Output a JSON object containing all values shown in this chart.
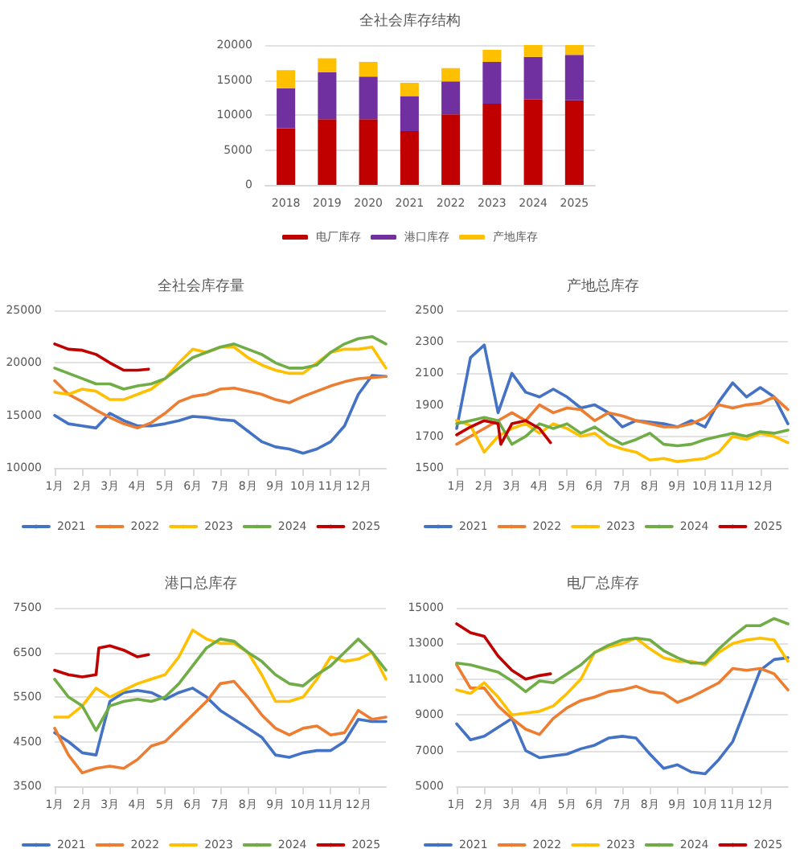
{
  "chart_data": [
    {
      "type": "bar",
      "title": "全社会库存结构",
      "stacked": true,
      "categories": [
        "2018",
        "2019",
        "2020",
        "2021",
        "2022",
        "2023",
        "2024",
        "2025"
      ],
      "ylim": [
        0,
        20000
      ],
      "yticks": [
        0,
        5000,
        10000,
        15000,
        20000
      ],
      "grid": "y",
      "legend": "bottom",
      "series": [
        {
          "name": "电厂库存",
          "color": "#c00000",
          "values": [
            8100,
            9400,
            9400,
            7700,
            10100,
            11600,
            12200,
            12100
          ]
        },
        {
          "name": "港口库存",
          "color": "#7030a0",
          "values": [
            5700,
            6700,
            6100,
            5000,
            4700,
            6000,
            6100,
            6500
          ]
        },
        {
          "name": "产地库存",
          "color": "#ffc000",
          "values": [
            2600,
            2000,
            2100,
            1900,
            1900,
            1700,
            1700,
            1400
          ]
        }
      ]
    },
    {
      "type": "line",
      "title": "全社会库存量",
      "x": [
        1,
        1.5,
        2,
        2.5,
        3,
        3.5,
        4,
        4.5,
        5,
        5.5,
        6,
        6.5,
        7,
        7.5,
        8,
        8.5,
        9,
        9.5,
        10,
        10.5,
        11,
        11.5,
        12,
        12.5,
        13
      ],
      "xlim": [
        1,
        13
      ],
      "xticks": [
        {
          "value": 1,
          "label": "1月"
        },
        {
          "value": 2,
          "label": "2月"
        },
        {
          "value": 3,
          "label": "3月"
        },
        {
          "value": 4,
          "label": "4月"
        },
        {
          "value": 5,
          "label": "5月"
        },
        {
          "value": 6,
          "label": "6月"
        },
        {
          "value": 7,
          "label": "7月"
        },
        {
          "value": 8,
          "label": "8月"
        },
        {
          "value": 9,
          "label": "9月"
        },
        {
          "value": 10,
          "label": "10月"
        },
        {
          "value": 11,
          "label": "11月"
        },
        {
          "value": 12,
          "label": "12月"
        }
      ],
      "ylim": [
        10000,
        25000
      ],
      "yticks": [
        10000,
        15000,
        20000,
        25000
      ],
      "grid": "y",
      "legend": "bottom",
      "marker": "none",
      "series": [
        {
          "name": "2021",
          "color": "#4472c4",
          "values": [
            15000,
            14200,
            14000,
            13800,
            15200,
            14500,
            14000,
            14000,
            14200,
            14500,
            14900,
            14800,
            14600,
            14500,
            13500,
            12500,
            12000,
            11800,
            11400,
            11800,
            12500,
            14000,
            17000,
            18800,
            18700
          ]
        },
        {
          "name": "2022",
          "color": "#ed7d31",
          "values": [
            18300,
            17000,
            16300,
            15500,
            14800,
            14200,
            13800,
            14300,
            15200,
            16300,
            16800,
            17000,
            17500,
            17600,
            17300,
            17000,
            16500,
            16200,
            16800,
            17300,
            17800,
            18200,
            18500,
            18600,
            18700
          ]
        },
        {
          "name": "2023",
          "color": "#ffc000",
          "values": [
            17200,
            17000,
            17500,
            17300,
            16500,
            16500,
            17000,
            17500,
            18500,
            20000,
            21300,
            21000,
            21500,
            21500,
            20500,
            19800,
            19300,
            19000,
            19000,
            20000,
            21000,
            21300,
            21300,
            21500,
            19500
          ]
        },
        {
          "name": "2024",
          "color": "#70ad47",
          "values": [
            19500,
            19000,
            18500,
            18000,
            18000,
            17500,
            17800,
            18000,
            18500,
            19500,
            20500,
            21000,
            21500,
            21800,
            21300,
            20800,
            20000,
            19500,
            19500,
            19800,
            21000,
            21800,
            22300,
            22500,
            21800
          ]
        },
        {
          "name": "2025",
          "color": "#c00000",
          "x": [
            1,
            1.5,
            2,
            2.5,
            3,
            3.5,
            4,
            4.4
          ],
          "values": [
            21800,
            21300,
            21200,
            20800,
            20000,
            19300,
            19300,
            19400
          ]
        }
      ]
    },
    {
      "type": "line",
      "title": "产地总库存",
      "x": [
        1,
        1.5,
        2,
        2.5,
        3,
        3.5,
        4,
        4.5,
        5,
        5.5,
        6,
        6.5,
        7,
        7.5,
        8,
        8.5,
        9,
        9.5,
        10,
        10.5,
        11,
        11.5,
        12,
        12.5,
        13
      ],
      "xlim": [
        1,
        13
      ],
      "xticks": [
        {
          "value": 1,
          "label": "1月"
        },
        {
          "value": 2,
          "label": "2月"
        },
        {
          "value": 3,
          "label": "3月"
        },
        {
          "value": 4,
          "label": "4月"
        },
        {
          "value": 5,
          "label": "5月"
        },
        {
          "value": 6,
          "label": "6月"
        },
        {
          "value": 7,
          "label": "7月"
        },
        {
          "value": 8,
          "label": "8月"
        },
        {
          "value": 9,
          "label": "9月"
        },
        {
          "value": 10,
          "label": "10月"
        },
        {
          "value": 11,
          "label": "11月"
        },
        {
          "value": 12,
          "label": "12月"
        }
      ],
      "ylim": [
        1500,
        2500
      ],
      "yticks": [
        1500,
        1700,
        1900,
        2100,
        2300,
        2500
      ],
      "grid": "y",
      "legend": "bottom",
      "marker": "none",
      "series": [
        {
          "name": "2021",
          "color": "#4472c4",
          "values": [
            1750,
            2200,
            2280,
            1850,
            2100,
            1980,
            1950,
            2000,
            1950,
            1880,
            1900,
            1850,
            1760,
            1800,
            1790,
            1780,
            1760,
            1800,
            1760,
            1920,
            2040,
            1950,
            2010,
            1950,
            1780
          ]
        },
        {
          "name": "2022",
          "color": "#ed7d31",
          "values": [
            1650,
            1700,
            1750,
            1800,
            1850,
            1800,
            1900,
            1850,
            1880,
            1870,
            1800,
            1850,
            1830,
            1800,
            1780,
            1760,
            1760,
            1780,
            1820,
            1900,
            1880,
            1900,
            1910,
            1950,
            1870
          ]
        },
        {
          "name": "2023",
          "color": "#ffc000",
          "values": [
            1800,
            1770,
            1600,
            1700,
            1750,
            1780,
            1720,
            1780,
            1750,
            1700,
            1720,
            1650,
            1620,
            1600,
            1550,
            1560,
            1540,
            1550,
            1560,
            1600,
            1700,
            1680,
            1720,
            1700,
            1660
          ]
        },
        {
          "name": "2024",
          "color": "#70ad47",
          "values": [
            1780,
            1800,
            1820,
            1800,
            1650,
            1700,
            1780,
            1750,
            1780,
            1720,
            1760,
            1700,
            1650,
            1680,
            1720,
            1650,
            1640,
            1650,
            1680,
            1700,
            1720,
            1700,
            1730,
            1720,
            1740
          ]
        },
        {
          "name": "2025",
          "color": "#c00000",
          "x": [
            1,
            1.5,
            2,
            2.5,
            2.6,
            3,
            3.5,
            4,
            4.4
          ],
          "values": [
            1710,
            1760,
            1800,
            1780,
            1650,
            1780,
            1800,
            1750,
            1660
          ]
        }
      ]
    },
    {
      "type": "line",
      "title": "港口总库存",
      "x": [
        1,
        1.5,
        2,
        2.5,
        3,
        3.5,
        4,
        4.5,
        5,
        5.5,
        6,
        6.5,
        7,
        7.5,
        8,
        8.5,
        9,
        9.5,
        10,
        10.5,
        11,
        11.5,
        12,
        12.5,
        13
      ],
      "xlim": [
        1,
        13
      ],
      "xticks": [
        {
          "value": 1,
          "label": "1月"
        },
        {
          "value": 2,
          "label": "2月"
        },
        {
          "value": 3,
          "label": "3月"
        },
        {
          "value": 4,
          "label": "4月"
        },
        {
          "value": 5,
          "label": "5月"
        },
        {
          "value": 6,
          "label": "6月"
        },
        {
          "value": 7,
          "label": "7月"
        },
        {
          "value": 8,
          "label": "8月"
        },
        {
          "value": 9,
          "label": "9月"
        },
        {
          "value": 10,
          "label": "10月"
        },
        {
          "value": 11,
          "label": "11月"
        },
        {
          "value": 12,
          "label": "12月"
        }
      ],
      "ylim": [
        3500,
        7500
      ],
      "yticks": [
        3500,
        4500,
        5500,
        6500,
        7500
      ],
      "grid": "y",
      "legend": "bottom",
      "marker": "none",
      "series": [
        {
          "name": "2021",
          "color": "#4472c4",
          "values": [
            4700,
            4500,
            4250,
            4200,
            5400,
            5600,
            5650,
            5600,
            5450,
            5600,
            5700,
            5500,
            5200,
            5000,
            4800,
            4600,
            4200,
            4150,
            4250,
            4300,
            4300,
            4500,
            5000,
            4950,
            4950
          ]
        },
        {
          "name": "2022",
          "color": "#ed7d31",
          "values": [
            4800,
            4200,
            3800,
            3900,
            3950,
            3900,
            4100,
            4400,
            4500,
            4800,
            5100,
            5400,
            5800,
            5850,
            5500,
            5100,
            4800,
            4650,
            4800,
            4850,
            4650,
            4700,
            5200,
            5000,
            5050
          ]
        },
        {
          "name": "2023",
          "color": "#ffc000",
          "values": [
            5050,
            5050,
            5300,
            5700,
            5500,
            5650,
            5800,
            5900,
            6000,
            6400,
            7000,
            6800,
            6700,
            6700,
            6500,
            6000,
            5400,
            5400,
            5500,
            5900,
            6400,
            6300,
            6350,
            6500,
            5900
          ]
        },
        {
          "name": "2024",
          "color": "#70ad47",
          "values": [
            5900,
            5500,
            5300,
            4750,
            5300,
            5400,
            5450,
            5400,
            5500,
            5800,
            6200,
            6600,
            6800,
            6750,
            6500,
            6300,
            6000,
            5800,
            5750,
            6000,
            6200,
            6500,
            6800,
            6500,
            6100
          ]
        },
        {
          "name": "2025",
          "color": "#c00000",
          "x": [
            1,
            1.5,
            2,
            2.5,
            2.6,
            3,
            3.5,
            4,
            4.4
          ],
          "values": [
            6100,
            6000,
            5950,
            6000,
            6600,
            6650,
            6550,
            6400,
            6450
          ]
        }
      ]
    },
    {
      "type": "line",
      "title": "电厂总库存",
      "x": [
        1,
        1.5,
        2,
        2.5,
        3,
        3.5,
        4,
        4.5,
        5,
        5.5,
        6,
        6.5,
        7,
        7.5,
        8,
        8.5,
        9,
        9.5,
        10,
        10.5,
        11,
        11.5,
        12,
        12.5,
        13
      ],
      "xlim": [
        1,
        13
      ],
      "xticks": [
        {
          "value": 1,
          "label": "1月"
        },
        {
          "value": 2,
          "label": "2月"
        },
        {
          "value": 3,
          "label": "3月"
        },
        {
          "value": 4,
          "label": "4月"
        },
        {
          "value": 5,
          "label": "5月"
        },
        {
          "value": 6,
          "label": "6月"
        },
        {
          "value": 7,
          "label": "7月"
        },
        {
          "value": 8,
          "label": "8月"
        },
        {
          "value": 9,
          "label": "9月"
        },
        {
          "value": 10,
          "label": "10月"
        },
        {
          "value": 11,
          "label": "11月"
        },
        {
          "value": 12,
          "label": "12月"
        }
      ],
      "ylim": [
        5000,
        15000
      ],
      "yticks": [
        5000,
        7000,
        9000,
        11000,
        13000,
        15000
      ],
      "grid": "y",
      "legend": "bottom",
      "marker": "none",
      "series": [
        {
          "name": "2021",
          "color": "#4472c4",
          "values": [
            8500,
            7600,
            7800,
            8300,
            8800,
            7000,
            6600,
            6700,
            6800,
            7100,
            7300,
            7700,
            7800,
            7700,
            6800,
            6000,
            6200,
            5800,
            5700,
            6500,
            7500,
            9500,
            11500,
            12100,
            12200
          ]
        },
        {
          "name": "2022",
          "color": "#ed7d31",
          "values": [
            11800,
            10500,
            10500,
            9500,
            8800,
            8200,
            7900,
            8800,
            9400,
            9800,
            10000,
            10300,
            10400,
            10600,
            10300,
            10200,
            9700,
            10000,
            10400,
            10800,
            11600,
            11500,
            11600,
            11300,
            10400
          ]
        },
        {
          "name": "2023",
          "color": "#ffc000",
          "values": [
            10400,
            10200,
            10800,
            10000,
            9000,
            9100,
            9200,
            9500,
            10200,
            11000,
            12500,
            12800,
            13000,
            13300,
            12700,
            12200,
            12000,
            12000,
            11800,
            12500,
            13000,
            13200,
            13300,
            13200,
            12000
          ]
        },
        {
          "name": "2024",
          "color": "#70ad47",
          "values": [
            11900,
            11800,
            11600,
            11400,
            10900,
            10300,
            10900,
            10800,
            11300,
            11800,
            12500,
            12900,
            13200,
            13300,
            13200,
            12600,
            12200,
            11900,
            11900,
            12700,
            13400,
            14000,
            14000,
            14400,
            14100
          ]
        },
        {
          "name": "2025",
          "color": "#c00000",
          "x": [
            1,
            1.5,
            2,
            2.5,
            3,
            3.5,
            4,
            4.4
          ],
          "values": [
            14100,
            13600,
            13400,
            12300,
            11500,
            11000,
            11200,
            11300
          ]
        }
      ]
    }
  ]
}
